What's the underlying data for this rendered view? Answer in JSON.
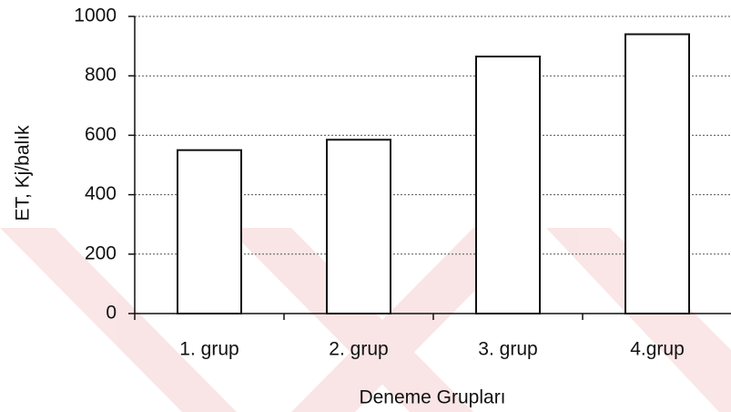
{
  "chart_data": {
    "type": "bar",
    "categories": [
      "1. grup",
      "2. grup",
      "3. grup",
      "4.grup"
    ],
    "values": [
      550,
      585,
      865,
      940
    ],
    "color": "#ffffff",
    "xlabel": "Deneme Grupları",
    "ylabel": "ET, Kj/balık",
    "ylim": [
      0,
      1000
    ],
    "yticks": [
      0,
      200,
      400,
      600,
      800,
      1000
    ],
    "grid": true
  }
}
